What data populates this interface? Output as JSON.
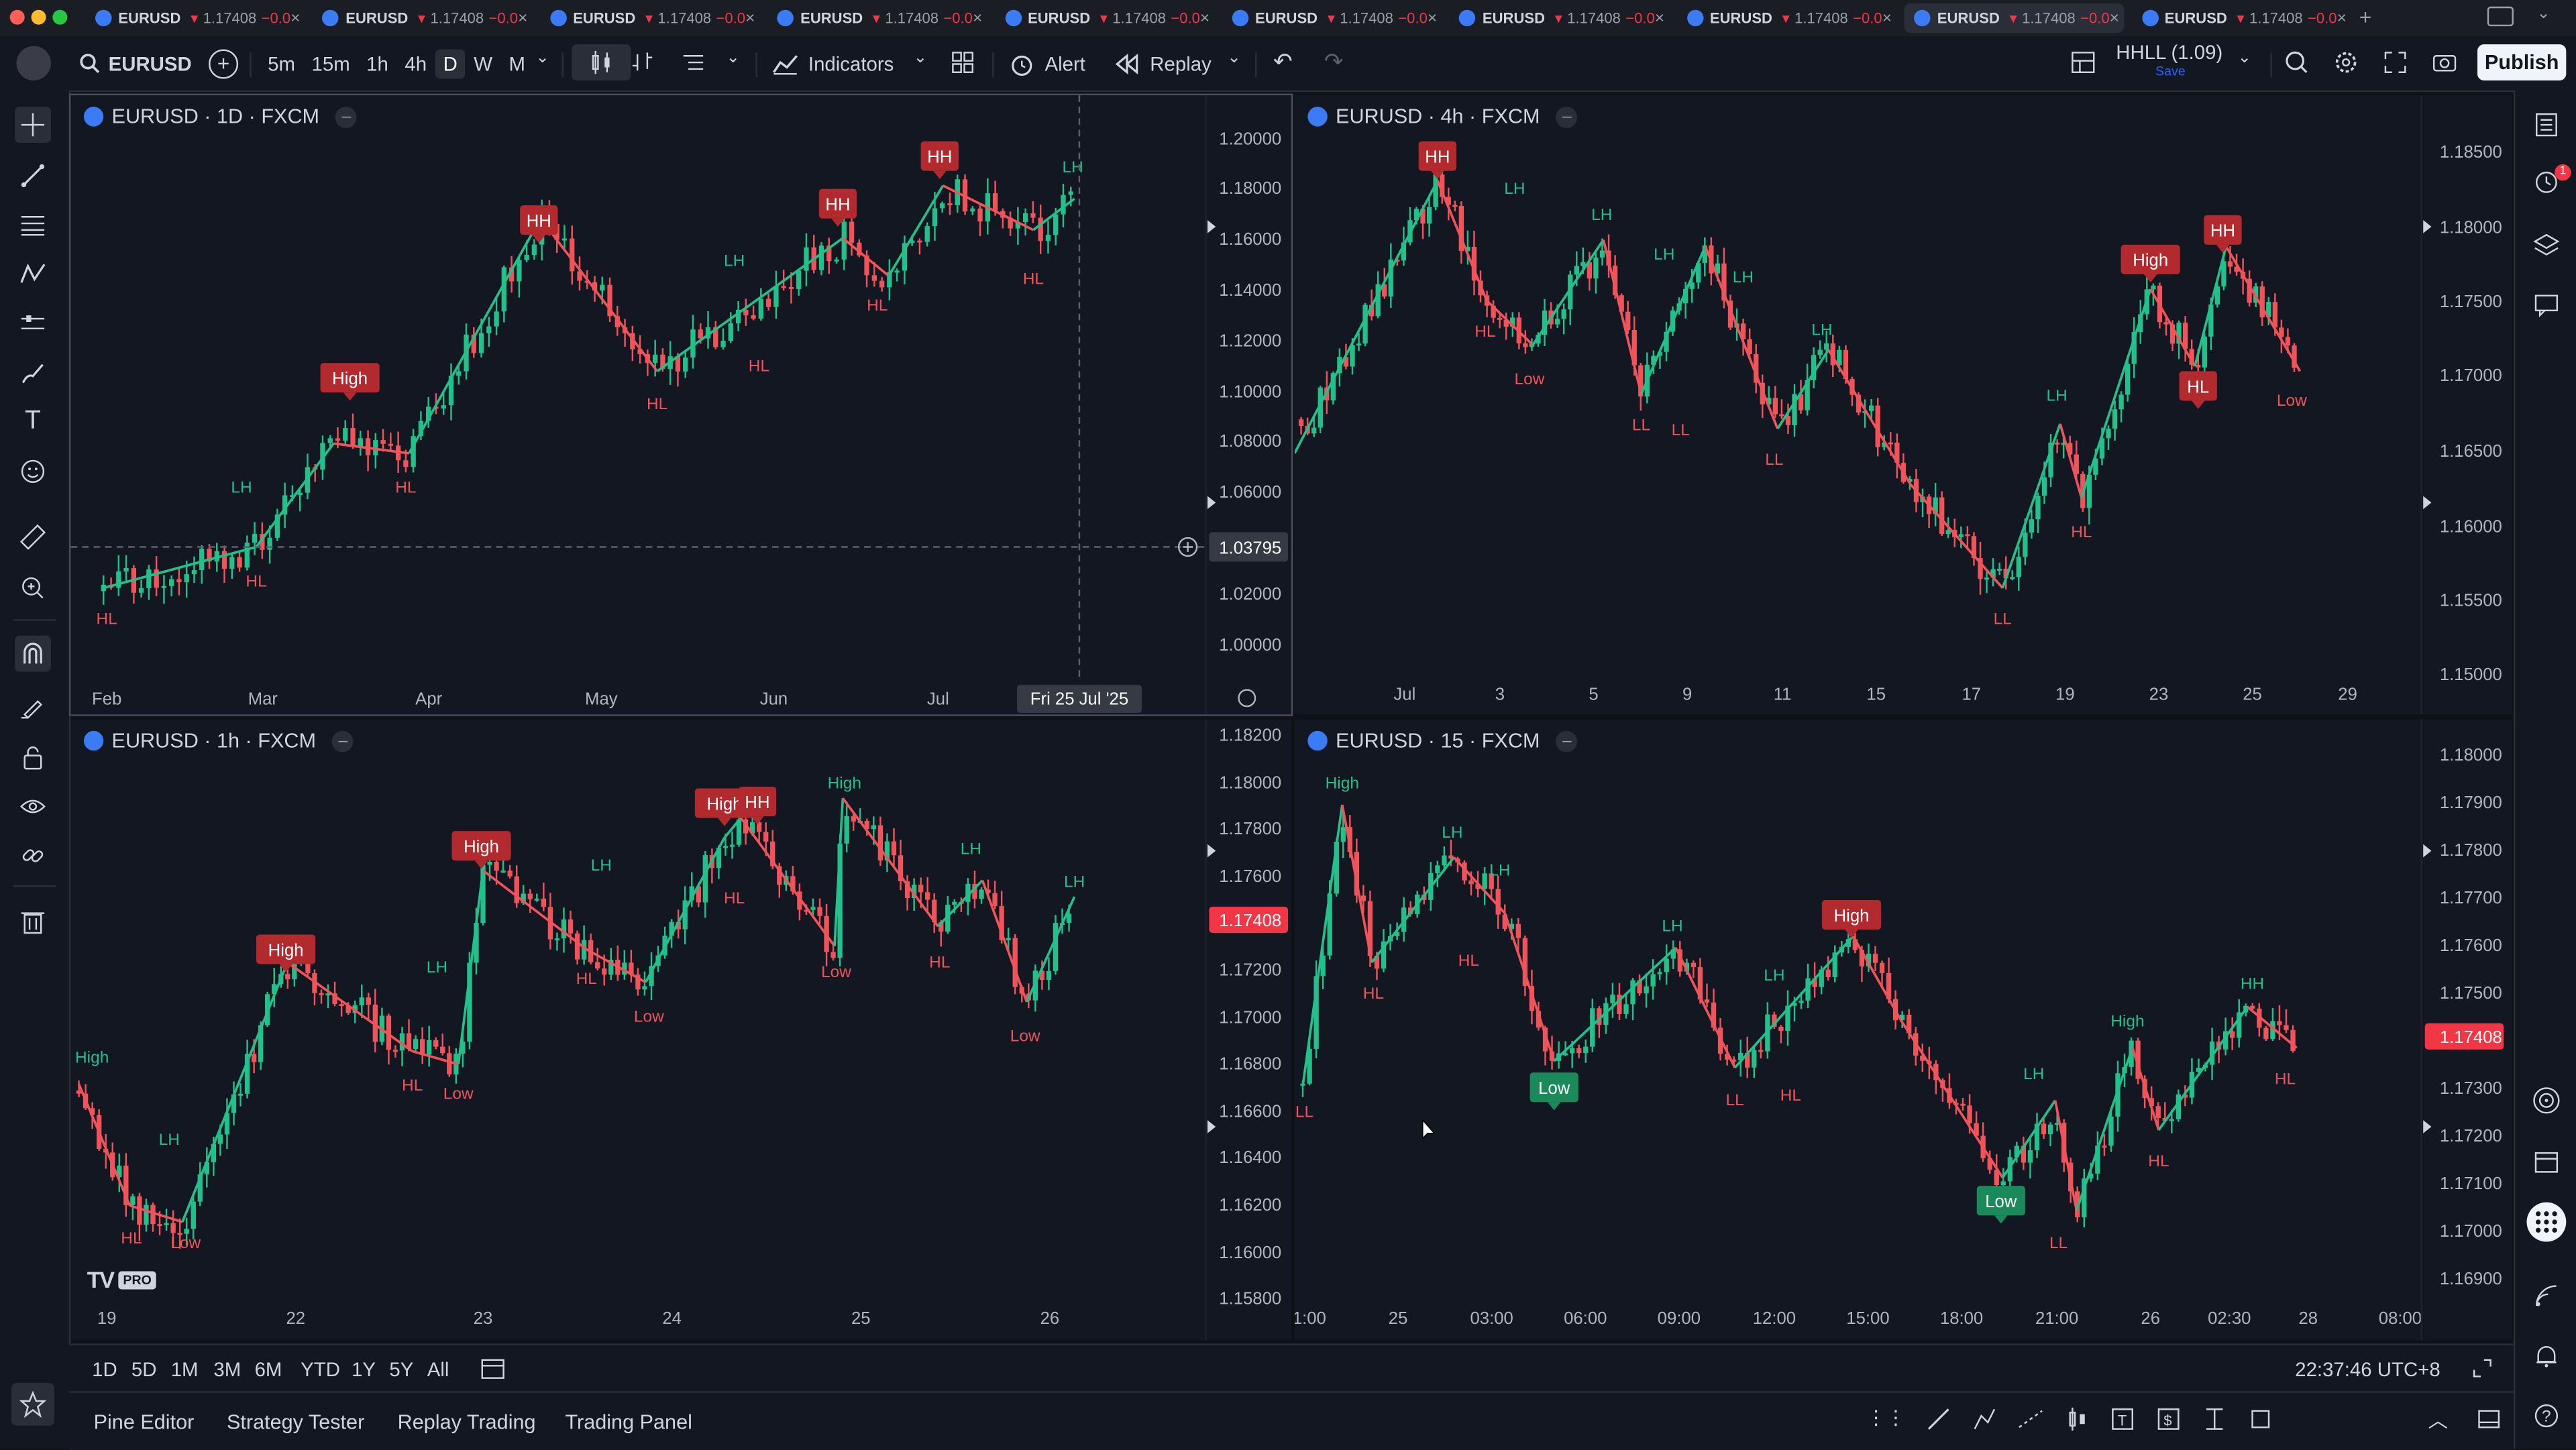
{
  "tabs": [
    {
      "symbol": "EURUSD",
      "price": "1.17408",
      "change": "−0.0"
    },
    {
      "symbol": "EURUSD",
      "price": "1.17408",
      "change": "−0.0"
    },
    {
      "symbol": "EURUSD",
      "price": "1.17408",
      "change": "−0.0"
    },
    {
      "symbol": "EURUSD",
      "price": "1.17408",
      "change": "−0.0"
    },
    {
      "symbol": "EURUSD",
      "price": "1.17408",
      "change": "−0.0"
    },
    {
      "symbol": "EURUSD",
      "price": "1.17408",
      "change": "−0.0"
    },
    {
      "symbol": "EURUSD",
      "price": "1.17408",
      "change": "−0.0"
    },
    {
      "symbol": "EURUSD",
      "price": "1.17408",
      "change": "−0.0"
    },
    {
      "symbol": "EURUSD",
      "price": "1.17408",
      "change": "−0.0"
    },
    {
      "symbol": "EURUSD",
      "price": "1.17408",
      "change": "−0.0"
    }
  ],
  "toolbar": {
    "symbol": "EURUSD",
    "intervals": [
      "5m",
      "15m",
      "1h",
      "4h",
      "D",
      "W",
      "M"
    ],
    "selected_interval": "D",
    "indicators_label": "Indicators",
    "alert_label": "Alert",
    "replay_label": "Replay",
    "layout_name": "HHLL (1.09)",
    "layout_save": "Save",
    "publish_label": "Publish"
  },
  "notifications_count": "1",
  "panes": [
    {
      "title": "EURUSD · 1D · FXCM",
      "price_labels": [
        "1.20000",
        "1.18000",
        "1.16000",
        "1.14000",
        "1.12000",
        "1.10000",
        "1.08000",
        "1.06000",
        "1.04000",
        "1.02000",
        "1.00000"
      ],
      "crosshair_price": "1.03795",
      "time_labels": [
        "Feb",
        "Mar",
        "Apr",
        "May",
        "Jun",
        "Jul"
      ],
      "crosshair_time": "Fri 25 Jul '25",
      "swing_labels": [
        {
          "text": "HL",
          "type": "red"
        },
        {
          "text": "HL",
          "type": "red"
        },
        {
          "text": "LH",
          "type": "green"
        },
        {
          "text": "High",
          "type": "box"
        },
        {
          "text": "HL",
          "type": "red"
        },
        {
          "text": "HH",
          "type": "box"
        },
        {
          "text": "HL",
          "type": "red"
        },
        {
          "text": "HL",
          "type": "red"
        },
        {
          "text": "LH",
          "type": "green"
        },
        {
          "text": "HH",
          "type": "box"
        },
        {
          "text": "HL",
          "type": "red"
        },
        {
          "text": "HH",
          "type": "box"
        },
        {
          "text": "HL",
          "type": "red"
        },
        {
          "text": "LH",
          "type": "green"
        }
      ]
    },
    {
      "title": "EURUSD · 4h · FXCM",
      "price_labels": [
        "1.18500",
        "1.18000",
        "1.17500",
        "1.17000",
        "1.16500",
        "1.16000",
        "1.15500",
        "1.15000"
      ],
      "time_labels": [
        "Jul",
        "3",
        "5",
        "9",
        "11",
        "15",
        "17",
        "19",
        "23",
        "25",
        "29"
      ],
      "swing_labels": [
        {
          "text": "HH",
          "type": "box"
        },
        {
          "text": "LH",
          "type": "green"
        },
        {
          "text": "HL",
          "type": "red"
        },
        {
          "text": "LH",
          "type": "green"
        },
        {
          "text": "Low",
          "type": "red"
        },
        {
          "text": "LH",
          "type": "green"
        },
        {
          "text": "LL",
          "type": "red"
        },
        {
          "text": "LL",
          "type": "red"
        },
        {
          "text": "LH",
          "type": "green"
        },
        {
          "text": "LL",
          "type": "red"
        },
        {
          "text": "LH",
          "type": "green"
        },
        {
          "text": "LL",
          "type": "red"
        },
        {
          "text": "LH",
          "type": "green"
        },
        {
          "text": "HL",
          "type": "red"
        },
        {
          "text": "High",
          "type": "box"
        },
        {
          "text": "HH",
          "type": "box"
        },
        {
          "text": "HL",
          "type": "box"
        },
        {
          "text": "Low",
          "type": "red"
        }
      ]
    },
    {
      "title": "EURUSD · 1h · FXCM",
      "price_labels": [
        "1.18200",
        "1.18000",
        "1.17800",
        "1.17600",
        "1.17200",
        "1.17000",
        "1.16800",
        "1.16600",
        "1.16400",
        "1.16200",
        "1.16000",
        "1.15800"
      ],
      "current_price": "1.17408",
      "time_labels": [
        "19",
        "22",
        "23",
        "24",
        "25",
        "26"
      ],
      "watermark": "PRO",
      "swing_labels": [
        {
          "text": "High",
          "type": "green"
        },
        {
          "text": "HL",
          "type": "red"
        },
        {
          "text": "LH",
          "type": "green"
        },
        {
          "text": "Low",
          "type": "red"
        },
        {
          "text": "High",
          "type": "box"
        },
        {
          "text": "HL",
          "type": "red"
        },
        {
          "text": "LH",
          "type": "green"
        },
        {
          "text": "Low",
          "type": "red"
        },
        {
          "text": "High",
          "type": "box"
        },
        {
          "text": "HL",
          "type": "red"
        },
        {
          "text": "LH",
          "type": "green"
        },
        {
          "text": "Low",
          "type": "red"
        },
        {
          "text": "High",
          "type": "box"
        },
        {
          "text": "HH",
          "type": "box"
        },
        {
          "text": "HL",
          "type": "red"
        },
        {
          "text": "High",
          "type": "green"
        },
        {
          "text": "Low",
          "type": "red"
        },
        {
          "text": "LH",
          "type": "green"
        },
        {
          "text": "HL",
          "type": "red"
        },
        {
          "text": "Low",
          "type": "red"
        },
        {
          "text": "LH",
          "type": "green"
        }
      ]
    },
    {
      "title": "EURUSD · 15 · FXCM",
      "price_labels": [
        "1.18000",
        "1.17900",
        "1.17800",
        "1.17700",
        "1.17600",
        "1.17500",
        "1.17300",
        "1.17200",
        "1.17100",
        "1.17000",
        "1.16900"
      ],
      "current_price": "1.17408",
      "time_labels": [
        "1:00",
        "25",
        "03:00",
        "06:00",
        "09:00",
        "12:00",
        "15:00",
        "18:00",
        "21:00",
        "26",
        "02:30",
        "28",
        "08:00"
      ],
      "swing_labels": [
        {
          "text": "High",
          "type": "green"
        },
        {
          "text": "LL",
          "type": "red"
        },
        {
          "text": "HL",
          "type": "red"
        },
        {
          "text": "LH",
          "type": "green"
        },
        {
          "text": "LH",
          "type": "green"
        },
        {
          "text": "HL",
          "type": "red"
        },
        {
          "text": "Low",
          "type": "greenbox"
        },
        {
          "text": "LH",
          "type": "green"
        },
        {
          "text": "LL",
          "type": "red"
        },
        {
          "text": "LH",
          "type": "green"
        },
        {
          "text": "HL",
          "type": "red"
        },
        {
          "text": "High",
          "type": "box"
        },
        {
          "text": "LH",
          "type": "green"
        },
        {
          "text": "Low",
          "type": "greenbox"
        },
        {
          "text": "LL",
          "type": "red"
        },
        {
          "text": "High",
          "type": "green"
        },
        {
          "text": "HL",
          "type": "red"
        },
        {
          "text": "HH",
          "type": "green"
        },
        {
          "text": "HL",
          "type": "red"
        }
      ]
    }
  ],
  "ranges": [
    "1D",
    "5D",
    "1M",
    "3M",
    "6M",
    "YTD",
    "1Y",
    "5Y",
    "All"
  ],
  "clock": "22:37:46 UTC+8",
  "bottom_tabs": [
    "Pine Editor",
    "Strategy Tester",
    "Replay Trading",
    "Trading Panel"
  ],
  "colors": {
    "up": "#22c08a",
    "down": "#f0535a",
    "box": "#b2292e",
    "greenbox": "#1a8a5a",
    "bg": "#131722"
  }
}
